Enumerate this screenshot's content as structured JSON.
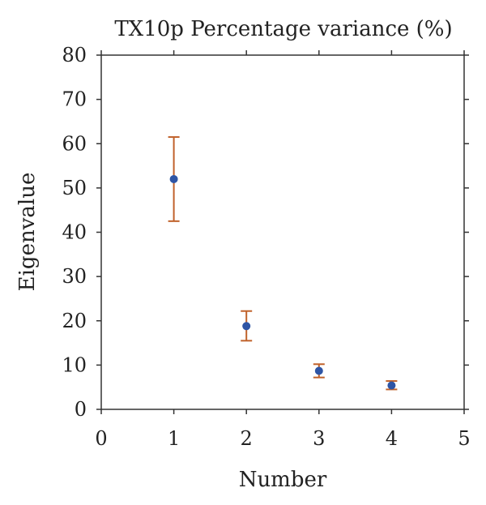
{
  "chart_data": {
    "type": "scatter",
    "title": "TX10p Percentage variance (%)",
    "xlabel": "Number",
    "ylabel": "Eigenvalue",
    "xlim": [
      0,
      5
    ],
    "ylim": [
      0,
      80
    ],
    "xticks": [
      "0",
      "1",
      "2",
      "3",
      "4",
      "5"
    ],
    "yticks": [
      "0",
      "10",
      "20",
      "30",
      "40",
      "50",
      "60",
      "70",
      "80"
    ],
    "grid": false,
    "legend": "none",
    "colors": {
      "point": "#2e55a5",
      "error_bar": "#c0622b",
      "axis": "#333333"
    },
    "series": [
      {
        "x": [
          1,
          2,
          3,
          4
        ],
        "y": [
          52,
          18.8,
          8.7,
          5.4
        ],
        "error_low": [
          42.5,
          15.5,
          7.2,
          4.5
        ],
        "error_high": [
          61.5,
          22.2,
          10.2,
          6.4
        ]
      }
    ]
  }
}
